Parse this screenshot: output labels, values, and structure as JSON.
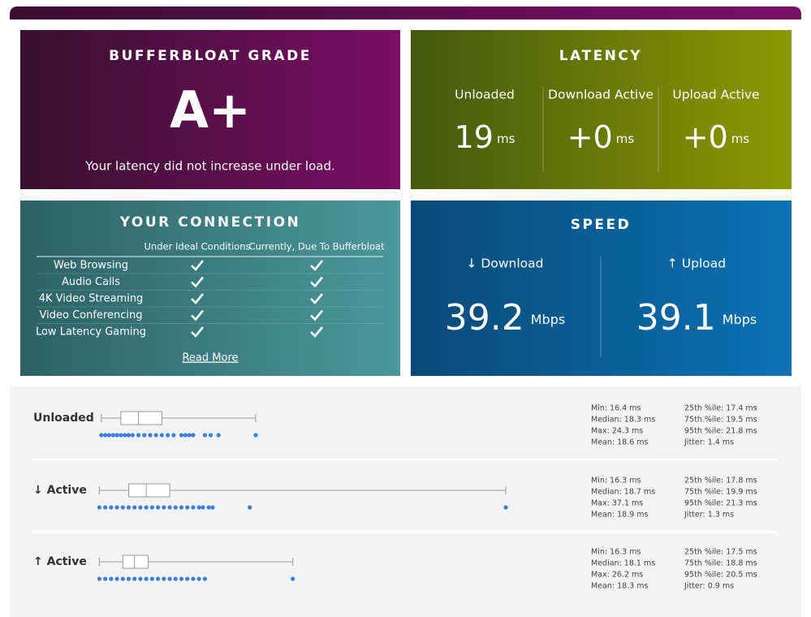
{
  "grade": {
    "title": "BUFFERBLOAT GRADE",
    "grade": "A+",
    "message": "Your latency did not increase under load."
  },
  "latency": {
    "title": "LATENCY",
    "columns": [
      {
        "label": "Unloaded",
        "value": "19",
        "unit": "ms"
      },
      {
        "label": "Download Active",
        "value": "+0",
        "unit": "ms"
      },
      {
        "label": "Upload Active",
        "value": "+0",
        "unit": "ms"
      }
    ]
  },
  "connection": {
    "title": "YOUR CONNECTION",
    "headers": [
      "Under Ideal Conditions",
      "Currently, Due To Bufferbloat"
    ],
    "rows": [
      "Web Browsing",
      "Audio Calls",
      "4K Video Streaming",
      "Video Conferencing",
      "Low Latency Gaming"
    ],
    "link": "Read More"
  },
  "speed": {
    "title": "SPEED",
    "columns": [
      {
        "label": "↓ Download",
        "value": "39.2",
        "unit": "Mbps"
      },
      {
        "label": "↑ Upload",
        "value": "39.1",
        "unit": "Mbps"
      }
    ]
  },
  "chart_data": {
    "type": "boxplot",
    "xlim": [
      16.2,
      40.3
    ],
    "box_color": "#999999",
    "point_color": "#3b82d6",
    "rows": [
      {
        "name": "Unloaded",
        "samples": [
          16.4,
          16.6,
          16.8,
          17.0,
          17.2,
          17.4,
          17.6,
          17.8,
          18.0,
          18.3,
          18.6,
          18.9,
          19.2,
          19.5,
          19.8,
          20.1,
          20.5,
          20.7,
          20.9,
          21.1,
          21.7,
          22.0,
          22.4,
          24.3
        ],
        "stats": [
          {
            "value": 16.4,
            "label": "Min: 16.4 ms"
          },
          {
            "value": 18.3,
            "label": "Median: 18.3 ms"
          },
          {
            "value": 24.3,
            "label": "Max: 24.3 ms"
          },
          {
            "value": 18.6,
            "label": "Mean: 18.6 ms"
          },
          {
            "value": 17.4,
            "label": "25th %ile: 17.4 ms"
          },
          {
            "value": 19.5,
            "label": "75th %ile: 19.5 ms"
          },
          {
            "value": 21.8,
            "label": "95th %ile: 21.8 ms"
          },
          {
            "value": 1.4,
            "label": "Jitter: 1.4 ms"
          }
        ]
      },
      {
        "name": "↓ Active",
        "samples": [
          16.3,
          16.6,
          16.9,
          17.2,
          17.5,
          17.8,
          18.1,
          18.4,
          18.7,
          19.0,
          19.3,
          19.6,
          19.9,
          20.2,
          20.5,
          20.8,
          21.1,
          21.4,
          21.6,
          21.9,
          22.1,
          24.0,
          37.1
        ],
        "stats": [
          {
            "value": 16.3,
            "label": "Min: 16.3 ms"
          },
          {
            "value": 18.7,
            "label": "Median: 18.7 ms"
          },
          {
            "value": 37.1,
            "label": "Max: 37.1 ms"
          },
          {
            "value": 18.9,
            "label": "Mean: 18.9 ms"
          },
          {
            "value": 17.8,
            "label": "25th %ile: 17.8 ms"
          },
          {
            "value": 19.9,
            "label": "75th %ile: 19.9 ms"
          },
          {
            "value": 21.3,
            "label": "95th %ile: 21.3 ms"
          },
          {
            "value": 1.3,
            "label": "Jitter: 1.3 ms"
          }
        ]
      },
      {
        "name": "↑ Active",
        "samples": [
          16.3,
          16.6,
          16.9,
          17.2,
          17.5,
          17.8,
          18.1,
          18.4,
          18.7,
          19.0,
          19.3,
          19.6,
          19.9,
          20.2,
          20.5,
          20.8,
          21.1,
          21.4,
          21.7,
          26.2
        ],
        "stats": [
          {
            "value": 16.3,
            "label": "Min: 16.3 ms"
          },
          {
            "value": 18.1,
            "label": "Median: 18.1 ms"
          },
          {
            "value": 26.2,
            "label": "Max: 26.2 ms"
          },
          {
            "value": 18.3,
            "label": "Mean: 18.3 ms"
          },
          {
            "value": 17.5,
            "label": "25th %ile: 17.5 ms"
          },
          {
            "value": 18.8,
            "label": "75th %ile: 18.8 ms"
          },
          {
            "value": 20.5,
            "label": "95th %ile: 20.5 ms"
          },
          {
            "value": 0.9,
            "label": "Jitter: 0.9 ms"
          }
        ]
      }
    ]
  }
}
